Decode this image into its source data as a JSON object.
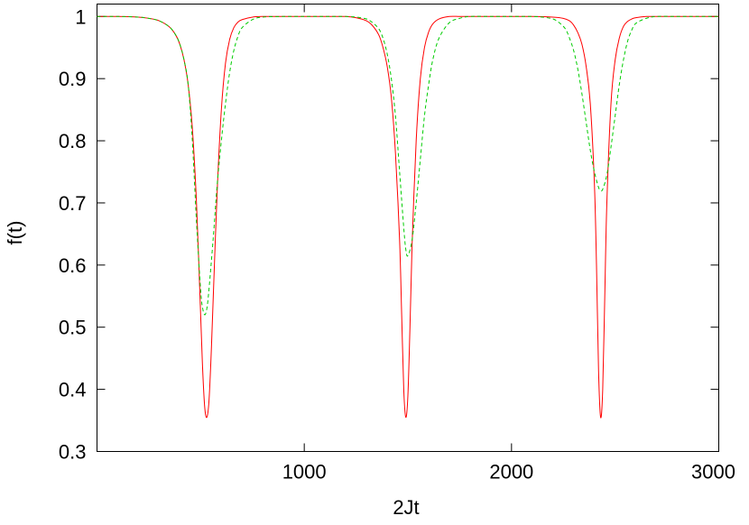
{
  "chart_data": {
    "type": "line",
    "title": "",
    "xlabel": "2Jt",
    "ylabel": "f(t)",
    "xlim": [
      0,
      3000
    ],
    "ylim": [
      0.3,
      1.02
    ],
    "x_ticks": [
      1000,
      2000,
      3000
    ],
    "y_ticks": [
      0.3,
      0.4,
      0.5,
      0.6,
      0.7,
      0.8,
      0.9,
      1
    ],
    "x_tick_labels": [
      "1000",
      "2000",
      "3000"
    ],
    "y_tick_labels": [
      "0.3",
      "0.4",
      "0.5",
      "0.6",
      "0.7",
      "0.8",
      "0.9",
      "1"
    ],
    "grid": false,
    "legend": "none",
    "series": [
      {
        "color": "#ff0000",
        "style": "solid",
        "x": [
          0,
          100,
          200,
          250,
          300,
          350,
          380,
          400,
          420,
          440,
          460,
          480,
          500,
          510,
          520,
          530,
          540,
          550,
          560,
          580,
          600,
          620,
          640,
          660,
          680,
          700,
          750,
          800,
          900,
          1000,
          1100,
          1200,
          1250,
          1300,
          1330,
          1360,
          1380,
          1400,
          1420,
          1440,
          1460,
          1470,
          1480,
          1490,
          1500,
          1510,
          1520,
          1540,
          1560,
          1580,
          1600,
          1620,
          1650,
          1700,
          1750,
          1800,
          1900,
          2000,
          2100,
          2200,
          2250,
          2280,
          2300,
          2320,
          2340,
          2360,
          2380,
          2400,
          2410,
          2420,
          2430,
          2440,
          2450,
          2460,
          2480,
          2500,
          2520,
          2540,
          2560,
          2580,
          2600,
          2650,
          2700,
          2800,
          2900,
          3000
        ],
        "y": [
          1.0,
          1.0,
          0.999,
          0.997,
          0.993,
          0.983,
          0.97,
          0.955,
          0.93,
          0.89,
          0.82,
          0.7,
          0.52,
          0.43,
          0.37,
          0.355,
          0.38,
          0.45,
          0.54,
          0.72,
          0.85,
          0.925,
          0.963,
          0.982,
          0.991,
          0.995,
          0.999,
          1.0,
          1.0,
          1.0,
          1.0,
          1.0,
          0.998,
          0.993,
          0.985,
          0.97,
          0.95,
          0.92,
          0.87,
          0.78,
          0.64,
          0.52,
          0.4,
          0.355,
          0.39,
          0.5,
          0.63,
          0.8,
          0.9,
          0.95,
          0.975,
          0.988,
          0.996,
          1.0,
          1.0,
          1.0,
          1.0,
          1.0,
          1.0,
          0.999,
          0.997,
          0.993,
          0.986,
          0.974,
          0.955,
          0.92,
          0.86,
          0.73,
          0.6,
          0.43,
          0.355,
          0.4,
          0.55,
          0.7,
          0.86,
          0.93,
          0.965,
          0.984,
          0.992,
          0.996,
          0.998,
          1.0,
          1.0,
          1.0,
          1.0,
          1.0
        ]
      },
      {
        "color": "#00cc00",
        "style": "dashed",
        "x": [
          0,
          100,
          200,
          250,
          300,
          350,
          380,
          400,
          420,
          440,
          460,
          480,
          500,
          510,
          520,
          530,
          540,
          560,
          580,
          600,
          620,
          640,
          660,
          680,
          700,
          750,
          800,
          900,
          1000,
          1100,
          1200,
          1250,
          1300,
          1330,
          1360,
          1380,
          1400,
          1420,
          1440,
          1460,
          1480,
          1490,
          1500,
          1520,
          1540,
          1560,
          1580,
          1600,
          1620,
          1650,
          1700,
          1750,
          1800,
          1900,
          2000,
          2100,
          2150,
          2200,
          2230,
          2260,
          2280,
          2300,
          2320,
          2340,
          2360,
          2380,
          2400,
          2420,
          2430,
          2440,
          2460,
          2480,
          2500,
          2520,
          2540,
          2560,
          2580,
          2600,
          2650,
          2700,
          2800,
          2900,
          3000
        ],
        "y": [
          1.0,
          1.0,
          0.999,
          0.997,
          0.993,
          0.983,
          0.97,
          0.955,
          0.93,
          0.89,
          0.8,
          0.67,
          0.56,
          0.53,
          0.52,
          0.53,
          0.56,
          0.64,
          0.73,
          0.8,
          0.86,
          0.91,
          0.945,
          0.968,
          0.982,
          0.995,
          0.999,
          1.0,
          1.0,
          1.0,
          1.0,
          0.999,
          0.996,
          0.99,
          0.98,
          0.965,
          0.94,
          0.9,
          0.84,
          0.75,
          0.66,
          0.625,
          0.615,
          0.64,
          0.7,
          0.77,
          0.84,
          0.89,
          0.93,
          0.965,
          0.99,
          0.997,
          1.0,
          1.0,
          1.0,
          1.0,
          0.999,
          0.996,
          0.99,
          0.98,
          0.965,
          0.945,
          0.915,
          0.875,
          0.83,
          0.785,
          0.75,
          0.725,
          0.72,
          0.722,
          0.745,
          0.79,
          0.84,
          0.89,
          0.93,
          0.96,
          0.978,
          0.989,
          0.997,
          1.0,
          1.0,
          1.0,
          1.0
        ]
      }
    ]
  }
}
